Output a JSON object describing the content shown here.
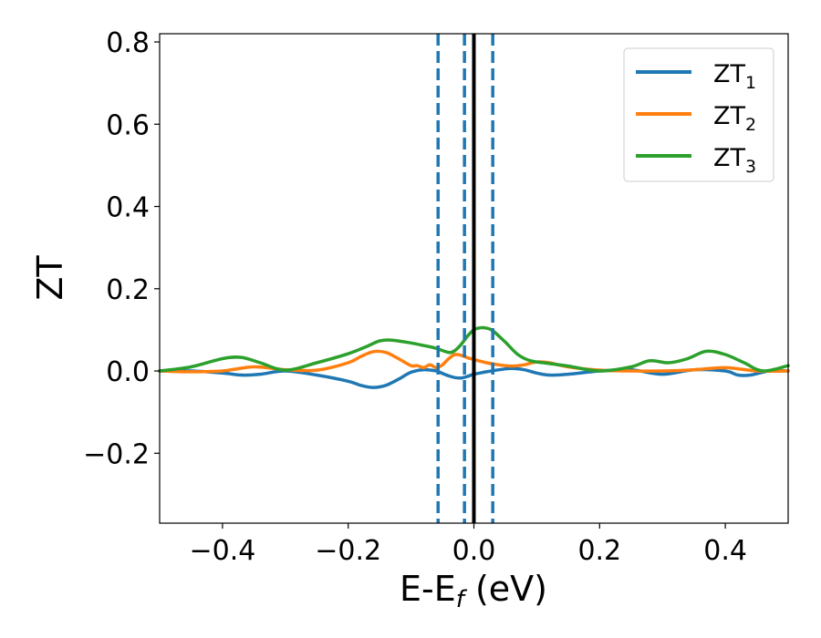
{
  "chart_data": {
    "type": "line",
    "xlabel": "E-E",
    "xlabel_sub": "f",
    "xlabel_unit": " (eV)",
    "ylabel": "ZT",
    "xlim": [
      -0.5,
      0.5
    ],
    "ylim": [
      -0.37,
      0.82
    ],
    "grid": false,
    "legend_position": "top-right",
    "xticks": [
      -0.4,
      -0.2,
      0.0,
      0.2,
      0.4
    ],
    "xtick_labels": [
      "−0.4",
      "−0.2",
      "0.0",
      "0.2",
      "0.4"
    ],
    "yticks": [
      -0.2,
      0.0,
      0.2,
      0.4,
      0.6,
      0.8
    ],
    "ytick_labels": [
      "−0.2",
      "0.0",
      "0.2",
      "0.4",
      "0.6",
      "0.8"
    ],
    "series": [
      {
        "name": "ZT",
        "name_sub": "1",
        "color": "#1f77b4",
        "x": [
          -0.5,
          -0.45,
          -0.4,
          -0.37,
          -0.34,
          -0.3,
          -0.25,
          -0.2,
          -0.18,
          -0.16,
          -0.14,
          -0.12,
          -0.1,
          -0.08,
          -0.06,
          -0.05,
          -0.04,
          -0.03,
          -0.02,
          -0.01,
          0.0,
          0.02,
          0.04,
          0.06,
          0.08,
          0.1,
          0.12,
          0.15,
          0.2,
          0.25,
          0.3,
          0.35,
          0.4,
          0.42,
          0.44,
          0.47,
          0.5
        ],
        "y": [
          0.0,
          0.0,
          -0.005,
          -0.01,
          -0.008,
          0.0,
          -0.01,
          -0.025,
          -0.035,
          -0.04,
          -0.035,
          -0.02,
          -0.003,
          0.003,
          0.0,
          -0.006,
          -0.012,
          -0.016,
          -0.017,
          -0.013,
          -0.008,
          -0.002,
          0.003,
          0.006,
          0.003,
          -0.005,
          -0.01,
          -0.008,
          0.0,
          0.003,
          -0.008,
          0.003,
          0.0,
          -0.01,
          -0.01,
          0.0,
          0.0
        ]
      },
      {
        "name": "ZT",
        "name_sub": "2",
        "color": "#ff7f0e",
        "x": [
          -0.5,
          -0.45,
          -0.4,
          -0.35,
          -0.3,
          -0.25,
          -0.2,
          -0.18,
          -0.16,
          -0.14,
          -0.12,
          -0.1,
          -0.09,
          -0.08,
          -0.07,
          -0.06,
          -0.05,
          -0.04,
          -0.03,
          -0.02,
          -0.01,
          0.0,
          0.02,
          0.04,
          0.06,
          0.08,
          0.1,
          0.12,
          0.15,
          0.2,
          0.25,
          0.3,
          0.35,
          0.4,
          0.45,
          0.5
        ],
        "y": [
          0.0,
          -0.002,
          0.0,
          0.01,
          0.003,
          0.002,
          0.02,
          0.035,
          0.047,
          0.045,
          0.03,
          0.013,
          0.013,
          0.008,
          0.015,
          0.008,
          0.015,
          0.03,
          0.04,
          0.038,
          0.032,
          0.028,
          0.02,
          0.015,
          0.012,
          0.015,
          0.022,
          0.02,
          0.01,
          0.002,
          0.0,
          0.0,
          0.003,
          0.008,
          0.0,
          0.0
        ]
      },
      {
        "name": "ZT",
        "name_sub": "3",
        "color": "#2ca02c",
        "x": [
          -0.5,
          -0.45,
          -0.4,
          -0.37,
          -0.34,
          -0.3,
          -0.25,
          -0.2,
          -0.17,
          -0.15,
          -0.13,
          -0.1,
          -0.08,
          -0.06,
          -0.04,
          -0.03,
          -0.02,
          -0.01,
          0.0,
          0.01,
          0.02,
          0.03,
          0.05,
          0.07,
          0.09,
          0.12,
          0.15,
          0.2,
          0.25,
          0.28,
          0.31,
          0.34,
          0.37,
          0.4,
          0.43,
          0.46,
          0.5
        ],
        "y": [
          0.0,
          0.01,
          0.03,
          0.033,
          0.02,
          0.002,
          0.02,
          0.042,
          0.06,
          0.073,
          0.075,
          0.068,
          0.062,
          0.055,
          0.045,
          0.05,
          0.065,
          0.085,
          0.1,
          0.105,
          0.104,
          0.098,
          0.07,
          0.04,
          0.025,
          0.018,
          0.012,
          0.0,
          0.01,
          0.025,
          0.02,
          0.03,
          0.048,
          0.04,
          0.02,
          0.0,
          0.013
        ]
      }
    ],
    "vlines": [
      {
        "x": -0.057,
        "color": "#1f77b4",
        "style": "dashed"
      },
      {
        "x": -0.015,
        "color": "#1f77b4",
        "style": "dashed"
      },
      {
        "x": 0.03,
        "color": "#1f77b4",
        "style": "dashed"
      },
      {
        "x": 0.0,
        "color": "#000000",
        "style": "solid"
      }
    ]
  }
}
